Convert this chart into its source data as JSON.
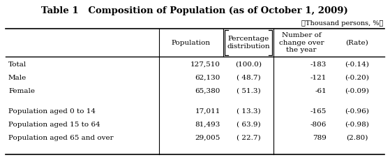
{
  "title": "Table 1   Composition of Population (as of October 1, 2009)",
  "subtitle": "（Thousand persons, %）",
  "row_labels": [
    "Total",
    "Male",
    "Female",
    "Population aged 0 to 14",
    "Population aged 15 to 64",
    "Population aged 65 and over"
  ],
  "population": [
    "127,510",
    "62,130",
    "65,380",
    "17,011",
    "81,493",
    "29,005"
  ],
  "pct_dist": [
    "(100.0)",
    "( 48.7)",
    "( 51.3)",
    "( 13.3)",
    "( 63.9)",
    "( 22.7)"
  ],
  "change": [
    "-183",
    "-121",
    "-61",
    "-165",
    "-806",
    "789"
  ],
  "rate": [
    "(-0.14)",
    "(-0.20)",
    "(-0.09)",
    "(-0.96)",
    "(-0.98)",
    "(2.80)"
  ],
  "bg_color": "#ffffff",
  "text_color": "#000000",
  "title_fontsize": 9.5,
  "cell_fontsize": 7.5,
  "header_fontsize": 7.5,
  "subtitle_fontsize": 7.0
}
